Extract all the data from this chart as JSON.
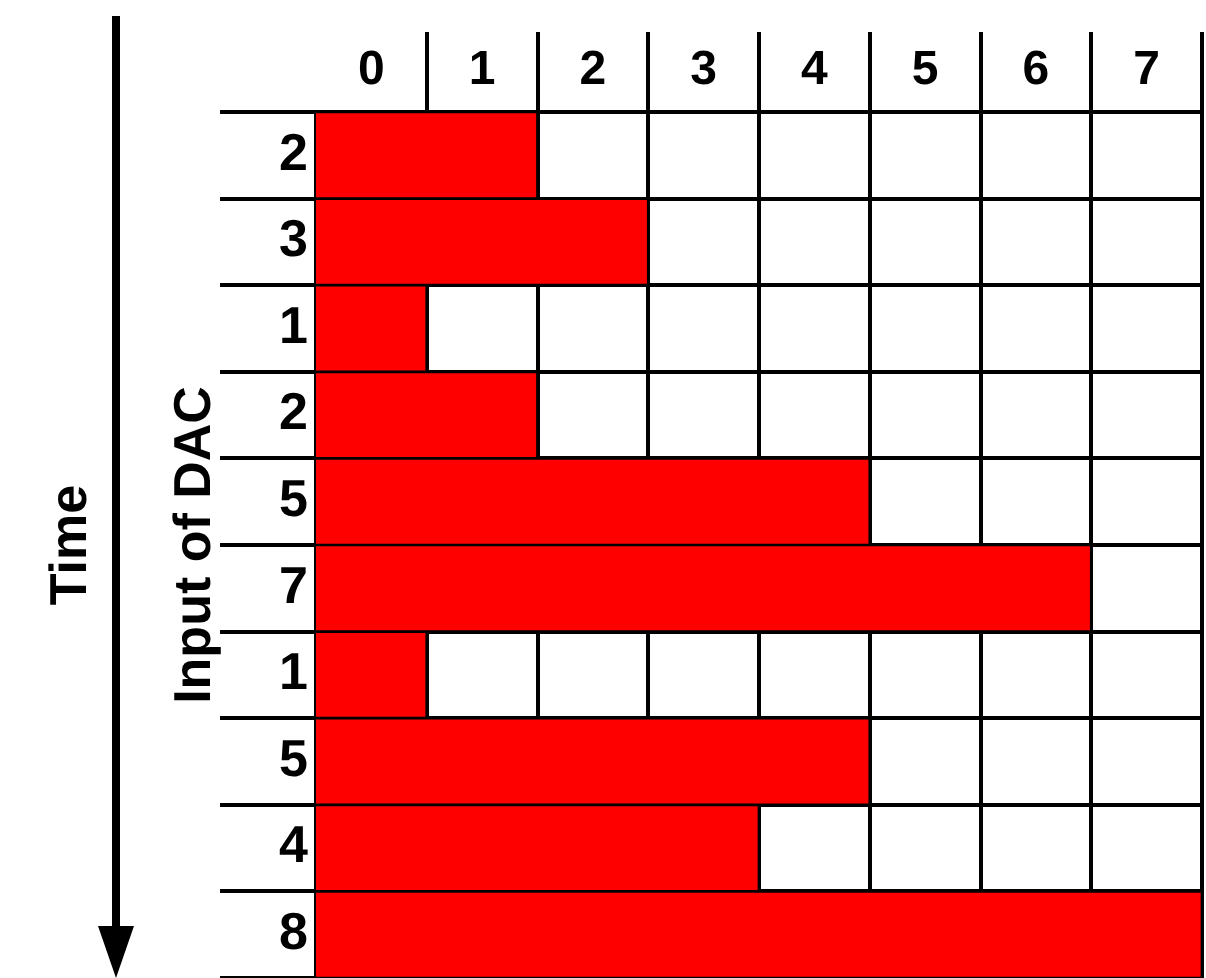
{
  "chart_data": {
    "type": "bar",
    "orientation": "horizontal",
    "ylabel": "Input of DAC",
    "annotations": [
      "Time"
    ],
    "categories": [
      "2",
      "3",
      "1",
      "2",
      "5",
      "7",
      "1",
      "5",
      "4",
      "8"
    ],
    "values": [
      2,
      3,
      1,
      2,
      5,
      7,
      1,
      5,
      4,
      8
    ],
    "color": "#ff0000",
    "xlim": [
      0,
      8
    ],
    "xticks": [
      {
        "value": 0.5,
        "label": "0"
      },
      {
        "value": 1,
        "label": null
      },
      {
        "value": 1.5,
        "label": "1"
      },
      {
        "value": 2,
        "label": null
      },
      {
        "value": 2.5,
        "label": "2"
      },
      {
        "value": 3,
        "label": null
      },
      {
        "value": 3.5,
        "label": "3"
      },
      {
        "value": 4,
        "label": null
      },
      {
        "value": 4.5,
        "label": "4"
      },
      {
        "value": 5,
        "label": null
      },
      {
        "value": 5.5,
        "label": "5"
      },
      {
        "value": 6,
        "label": null
      },
      {
        "value": 6.5,
        "label": "6"
      },
      {
        "value": 7,
        "label": null
      },
      {
        "value": 7.5,
        "label": "7"
      },
      {
        "value": 8,
        "label": null
      }
    ],
    "grid": true
  }
}
